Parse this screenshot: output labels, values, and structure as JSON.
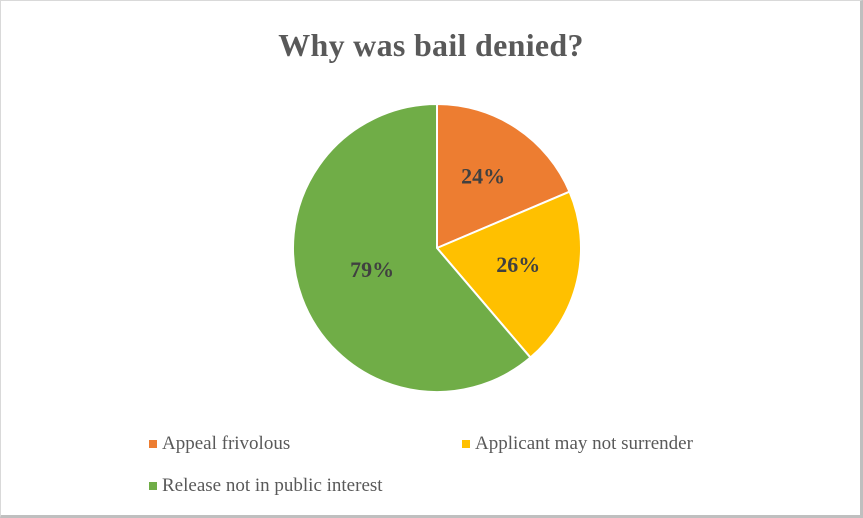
{
  "chart_data": {
    "type": "pie",
    "title": "Why was bail denied?",
    "slices": [
      {
        "label": "Appeal frivolous",
        "value": 24,
        "display": "24%",
        "color": "#ed7d31"
      },
      {
        "label": "Applicant may not surrender",
        "value": 26,
        "display": "26%",
        "color": "#ffc000"
      },
      {
        "label": "Release not in public interest",
        "value": 79,
        "display": "79%",
        "color": "#70ad47"
      }
    ],
    "legend_position": "bottom",
    "start_angle_deg": 0,
    "direction": "clockwise"
  }
}
